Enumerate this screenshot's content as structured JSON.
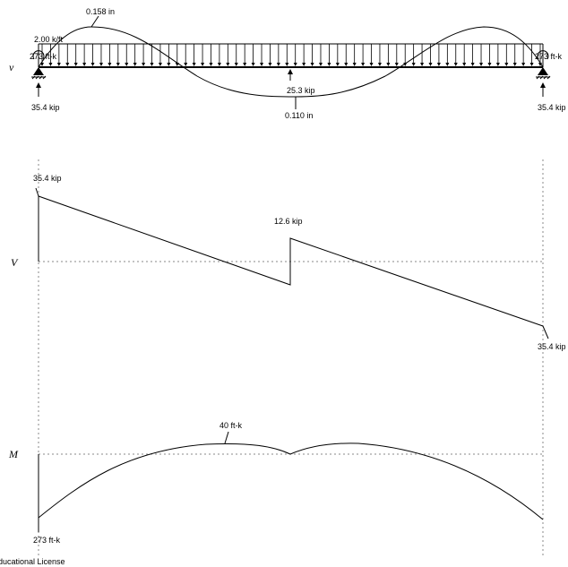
{
  "deflection_panel": {
    "axis_name": "v",
    "distributed_load": "2.00 k/ft",
    "left_moment": "273 ft-k",
    "right_moment": "273 ft-k",
    "left_reaction": "35.4 kip",
    "right_reaction": "35.4 kip",
    "middle_reaction": "25.3 kip",
    "max_up_deflection": "0.158 in",
    "max_down_deflection": "0.110 in"
  },
  "shear_panel": {
    "axis_name": "V",
    "left_value": "35.4 kip",
    "jump_value": "12.6 kip",
    "right_value": "35.4 kip"
  },
  "moment_panel": {
    "axis_name": "M",
    "peak_value": "40 ft-k",
    "end_value": "273 ft-k"
  },
  "footer": {
    "license": "ducational License"
  }
}
